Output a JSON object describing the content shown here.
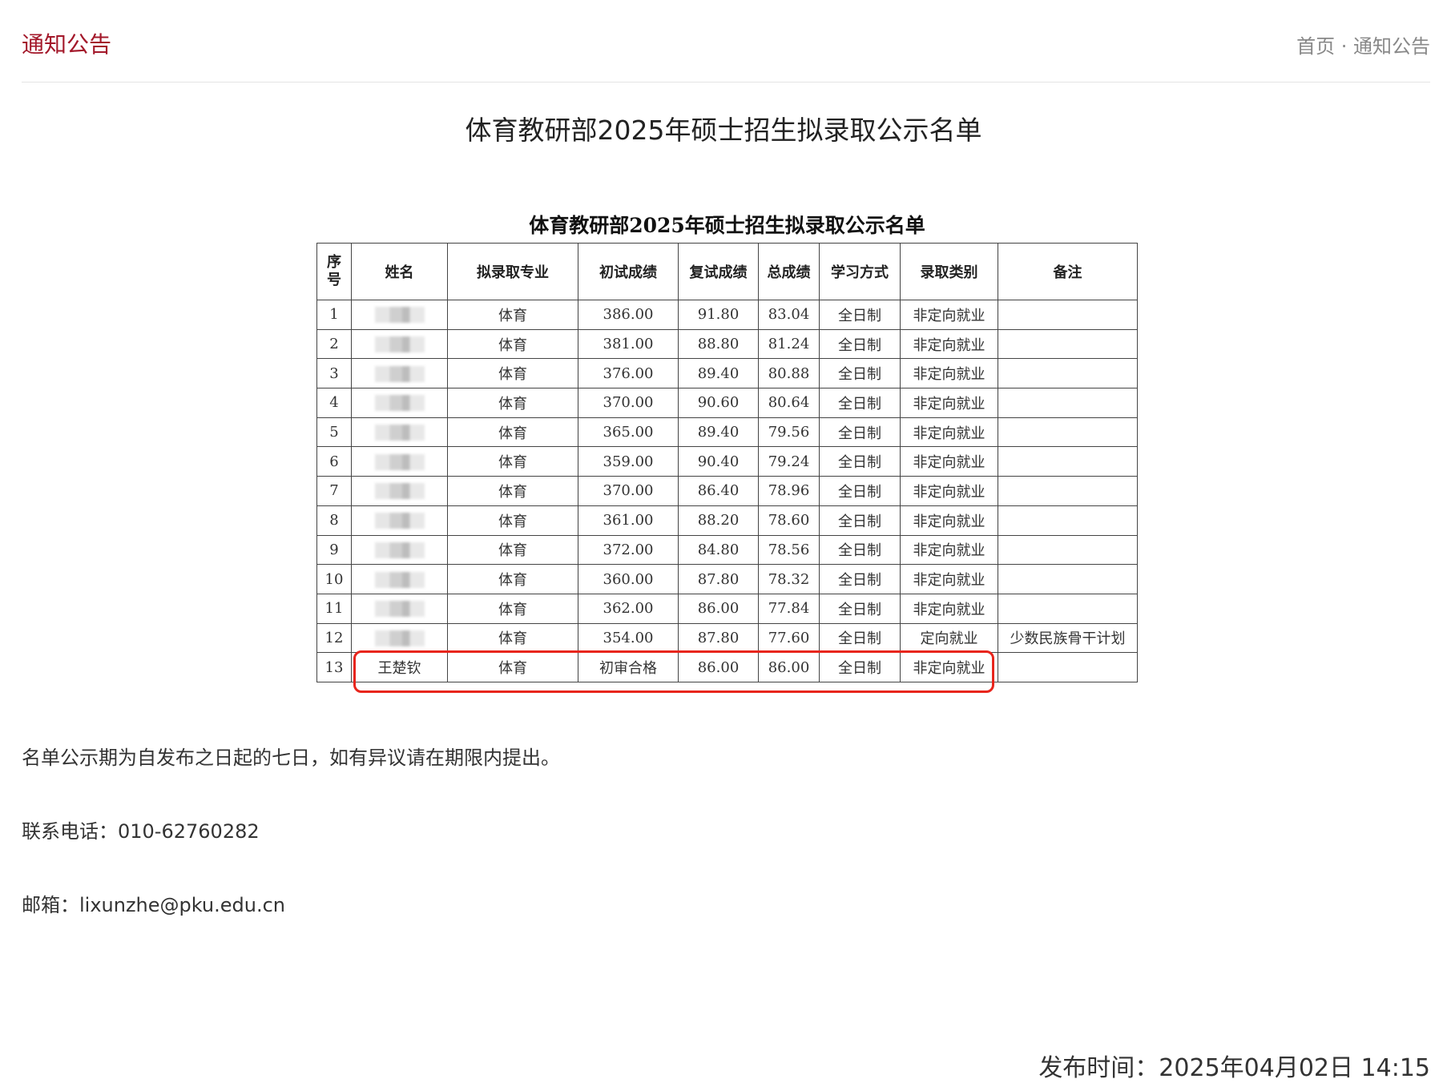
{
  "header": {
    "title": "通知公告",
    "breadcrumb": [
      "首页",
      "通知公告"
    ],
    "breadcrumb_sep": "·"
  },
  "article": {
    "title": "体育教研部2025年硕士招生拟录取公示名单",
    "table_title": "体育教研部2025年硕士招生拟录取公示名单",
    "columns": [
      "序号",
      "姓名",
      "拟录取专业",
      "初试成绩",
      "复试成绩",
      "总成绩",
      "学习方式",
      "录取类别",
      "备注"
    ],
    "rows": [
      [
        "1",
        "",
        "体育",
        "386.00",
        "91.80",
        "83.04",
        "全日制",
        "非定向就业",
        ""
      ],
      [
        "2",
        "",
        "体育",
        "381.00",
        "88.80",
        "81.24",
        "全日制",
        "非定向就业",
        ""
      ],
      [
        "3",
        "",
        "体育",
        "376.00",
        "89.40",
        "80.88",
        "全日制",
        "非定向就业",
        ""
      ],
      [
        "4",
        "",
        "体育",
        "370.00",
        "90.60",
        "80.64",
        "全日制",
        "非定向就业",
        ""
      ],
      [
        "5",
        "",
        "体育",
        "365.00",
        "89.40",
        "79.56",
        "全日制",
        "非定向就业",
        ""
      ],
      [
        "6",
        "",
        "体育",
        "359.00",
        "90.40",
        "79.24",
        "全日制",
        "非定向就业",
        ""
      ],
      [
        "7",
        "",
        "体育",
        "370.00",
        "86.40",
        "78.96",
        "全日制",
        "非定向就业",
        ""
      ],
      [
        "8",
        "",
        "体育",
        "361.00",
        "88.20",
        "78.60",
        "全日制",
        "非定向就业",
        ""
      ],
      [
        "9",
        "",
        "体育",
        "372.00",
        "84.80",
        "78.56",
        "全日制",
        "非定向就业",
        ""
      ],
      [
        "10",
        "",
        "体育",
        "360.00",
        "87.80",
        "78.32",
        "全日制",
        "非定向就业",
        ""
      ],
      [
        "11",
        "",
        "体育",
        "362.00",
        "86.00",
        "77.84",
        "全日制",
        "非定向就业",
        ""
      ],
      [
        "12",
        "",
        "体育",
        "354.00",
        "87.80",
        "77.60",
        "全日制",
        "定向就业",
        "少数民族骨干计划"
      ],
      [
        "13",
        "王楚钦",
        "体育",
        "初审合格",
        "86.00",
        "86.00",
        "全日制",
        "非定向就业",
        ""
      ]
    ],
    "highlight_color": "#e8251c",
    "notice": "名单公示期为自发布之日起的七日，如有异议请在期限内提出。",
    "phone": "联系电话：010-62760282",
    "email": "邮箱：lixunzhe@pku.edu.cn",
    "publish_time": "发布时间：2025年04月02日 14:15"
  },
  "colors": {
    "brand": "#a3182a"
  }
}
